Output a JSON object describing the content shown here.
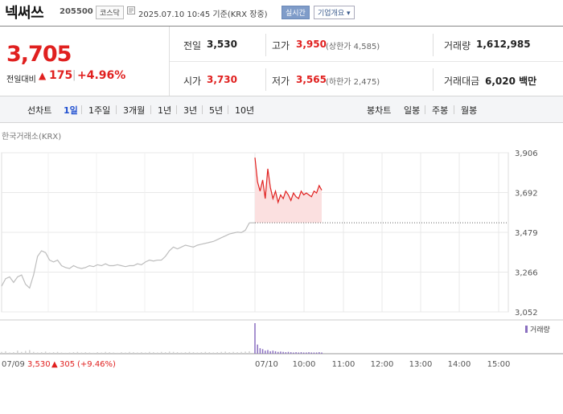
{
  "header": {
    "title": "넥써쓰",
    "code": "205500",
    "market": "코스닥",
    "timestamp": "2025.07.10 10:45  기준(KRX 장중)",
    "realtime_label": "실시간",
    "overview_label": "기업개요 ▾"
  },
  "price": {
    "current": "3,705",
    "change_label": "전일대비",
    "change_arrow": "▲",
    "change_value": "175",
    "change_rate": "+4.96%"
  },
  "stats": {
    "prev_close_label": "전일",
    "prev_close": "3,530",
    "high_label": "고가",
    "high": "3,950",
    "upper_limit": "(상한가 4,585)",
    "volume_label": "거래량",
    "volume": "1,612,985",
    "open_label": "시가",
    "open": "3,730",
    "low_label": "저가",
    "low": "3,565",
    "lower_limit": "(하한가 2,475)",
    "value_label": "거래대금",
    "value": "6,020 백만"
  },
  "tabs": {
    "line_label": "선차트",
    "line_items": [
      "1일",
      "1주일",
      "3개월",
      "1년",
      "3년",
      "5년",
      "10년"
    ],
    "active": "1일",
    "candle_label": "봉차트",
    "candle_items": [
      "일봉",
      "주봉",
      "월봉"
    ]
  },
  "chart_source": "한국거래소(KRX)",
  "chart_data": {
    "type": "line",
    "ylim": [
      3052,
      3906
    ],
    "y_ticks": [
      "3,906",
      "3,692",
      "3,479",
      "3,266",
      "3,052"
    ],
    "x_ticks": [
      "07/10",
      "10:00",
      "11:00",
      "12:00",
      "13:00",
      "14:00",
      "15:00"
    ],
    "legend": "거래량",
    "bottom_info": {
      "date": "07/09",
      "close": "3,530",
      "arrow": "▲",
      "change": "305",
      "rate": "(+9.46%)"
    },
    "series": [
      {
        "day": "07/09",
        "values": [
          3190,
          3230,
          3240,
          3210,
          3240,
          3250,
          3200,
          3180,
          3250,
          3350,
          3380,
          3370,
          3330,
          3320,
          3330,
          3300,
          3290,
          3285,
          3300,
          3290,
          3285,
          3290,
          3300,
          3295,
          3305,
          3300,
          3310,
          3300,
          3300,
          3305,
          3300,
          3295,
          3300,
          3300,
          3310,
          3305,
          3320,
          3330,
          3325,
          3330,
          3330,
          3350,
          3380,
          3400,
          3390,
          3400,
          3410,
          3405,
          3400,
          3410,
          3415,
          3420,
          3425,
          3430,
          3440,
          3450,
          3460,
          3470,
          3475,
          3480,
          3478,
          3490,
          3530
        ]
      },
      {
        "day": "07/10",
        "values": [
          3880,
          3750,
          3700,
          3760,
          3660,
          3820,
          3720,
          3660,
          3700,
          3640,
          3680,
          3660,
          3700,
          3680,
          3650,
          3690,
          3670,
          3660,
          3700,
          3680,
          3690,
          3680,
          3670,
          3700,
          3690,
          3730,
          3705
        ]
      }
    ],
    "volume_07_09": [
      6,
      8,
      4,
      5,
      10,
      6,
      9,
      12,
      6,
      4,
      5,
      7,
      4,
      5,
      6,
      4,
      3,
      4,
      5,
      6,
      4,
      5,
      4,
      3,
      5,
      4,
      6,
      5,
      4,
      3,
      5,
      4,
      6,
      5,
      4,
      5,
      4,
      6,
      5,
      4,
      6,
      5,
      7,
      6,
      5,
      4,
      5,
      6,
      5,
      4,
      5,
      6,
      5,
      4,
      5,
      6,
      7,
      5,
      6,
      5,
      6,
      7,
      8
    ],
    "volume_07_10": [
      100,
      30,
      18,
      15,
      10,
      12,
      8,
      10,
      8,
      6,
      7,
      6,
      5,
      6,
      5,
      4,
      5,
      4,
      5,
      4,
      4,
      5,
      4,
      4,
      4,
      5,
      4
    ]
  }
}
